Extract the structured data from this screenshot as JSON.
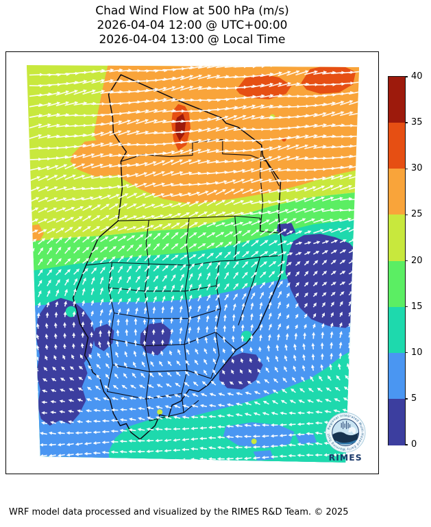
{
  "title": {
    "line1": "Chad Wind Flow at 500 hPa (m/s)",
    "line2": "2026-04-04 12:00 @ UTC+00:00",
    "line3": "2026-04-04 13:00 @ Local Time"
  },
  "footer": {
    "credit": "WRF model data processed and visualized by the RIMES R&D Team. © 2025"
  },
  "logo": {
    "wordmark": "RIMES",
    "ring_text": "Regional Integrated Multi-Hazard Early Warning System",
    "navy": "#1b3a6b",
    "light_blue": "#c9e4f2",
    "mid_blue": "#2d75a8",
    "dark_wave": "#17334f"
  },
  "chart_data": {
    "type": "heatmap",
    "subtype": "wind_speed_filled_contours_with_quiver_overlay",
    "title": "Chad Wind Flow at 500 hPa (m/s)",
    "valid_time_utc": "2026-04-04 12:00 @ UTC+00:00",
    "valid_time_local": "2026-04-04 13:00 @ Local Time",
    "units": "m/s",
    "map_overlay": "Chad national and first-level administrative boundaries",
    "colorbar": {
      "orientation": "vertical",
      "position": "right",
      "levels": [
        0,
        5,
        10,
        15,
        20,
        25,
        30,
        35,
        40
      ],
      "tick_labels": [
        "0",
        "5",
        "10",
        "15",
        "20",
        "25",
        "30",
        "35",
        "40"
      ],
      "colors": [
        "#3c3e9f",
        "#4a96f2",
        "#1ed9ad",
        "#5bee63",
        "#c8e83d",
        "#f9a43a",
        "#e64f13",
        "#9d1a0c"
      ]
    },
    "speed_bands_north_to_south": [
      {
        "zone": "far north",
        "speed_ms": "25-30",
        "note": "embedded cores 30-35, small maxima >35"
      },
      {
        "zone": "north-west margin",
        "speed_ms": "20-25"
      },
      {
        "zone": "north-central",
        "speed_ms": "15-20"
      },
      {
        "zone": "central",
        "speed_ms": "10-15"
      },
      {
        "zone": "south-central",
        "speed_ms": "5-10",
        "note": "calm cores <5 over west-central and eastern areas"
      },
      {
        "zone": "far south",
        "speed_ms": "10-15"
      }
    ],
    "wind_field": {
      "summary": "Strong westerlies across northern Chad veering through northerly flow in central Chad to easterlies in the far south (arrows point with the flow).",
      "flow_profile": [
        {
          "fy": 0.0,
          "dir": 8,
          "speed": 28
        },
        {
          "fy": 0.1,
          "dir": 8,
          "speed": 28
        },
        {
          "fy": 0.22,
          "dir": 11,
          "speed": 26
        },
        {
          "fy": 0.32,
          "dir": 17,
          "speed": 23
        },
        {
          "fy": 0.4,
          "dir": 26,
          "speed": 20
        },
        {
          "fy": 0.47,
          "dir": 40,
          "speed": 17
        },
        {
          "fy": 0.55,
          "dir": 58,
          "speed": 14
        },
        {
          "fy": 0.62,
          "dir": 74,
          "speed": 12
        },
        {
          "fy": 0.68,
          "dir": 90,
          "speed": 11
        },
        {
          "fy": 0.73,
          "dir": 108,
          "speed": 10
        },
        {
          "fy": 0.78,
          "dir": 132,
          "speed": 10
        },
        {
          "fy": 0.82,
          "dir": 152,
          "speed": 11
        },
        {
          "fy": 0.87,
          "dir": 170,
          "speed": 12
        },
        {
          "fy": 0.93,
          "dir": 178,
          "speed": 13
        },
        {
          "fy": 1.0,
          "dir": 183,
          "speed": 13
        }
      ]
    }
  }
}
